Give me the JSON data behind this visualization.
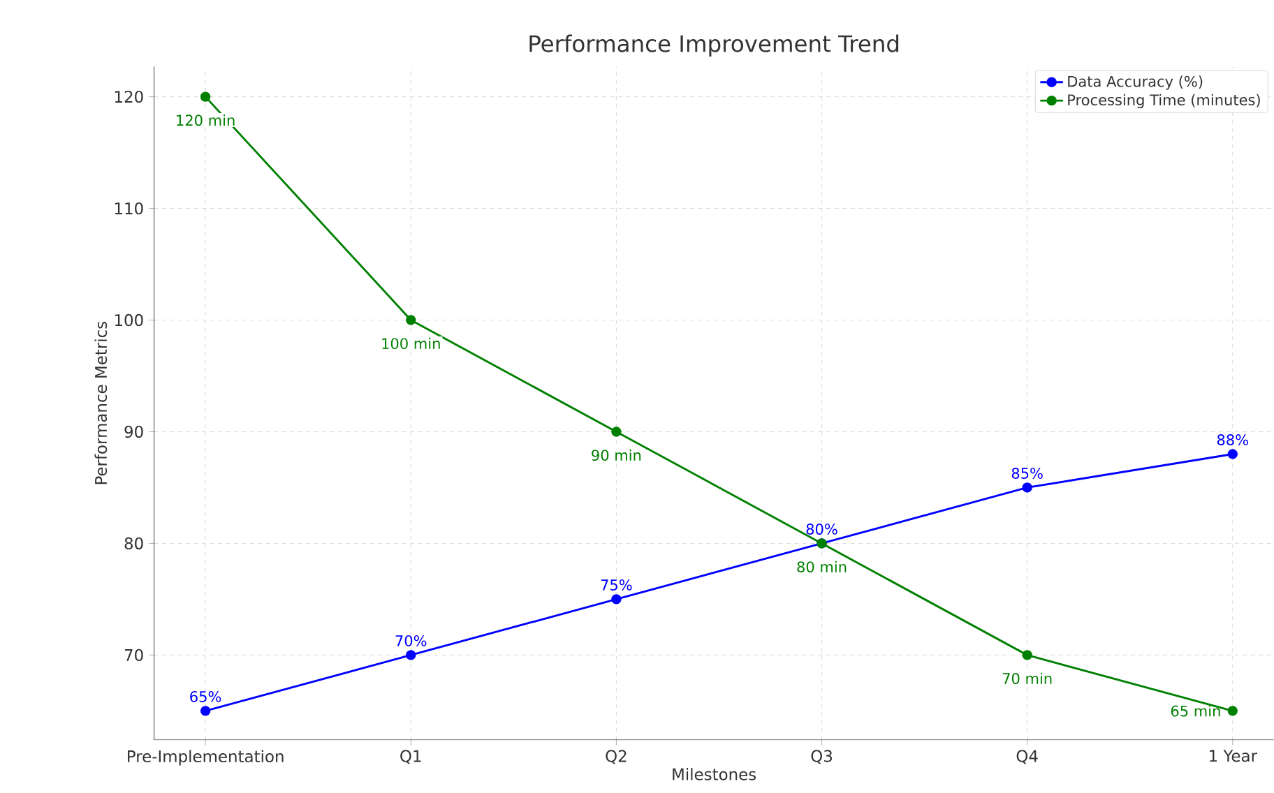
{
  "chart_data": {
    "type": "line",
    "title": "Performance Improvement Trend",
    "xlabel": "Milestones",
    "ylabel": "Performance Metrics",
    "categories": [
      "Pre-Implementation",
      "Q1",
      "Q2",
      "Q3",
      "Q4",
      "1 Year"
    ],
    "series": [
      {
        "name": "Data Accuracy (%)",
        "color": "#0000ff",
        "values": [
          65,
          70,
          75,
          80,
          85,
          88
        ],
        "value_labels": [
          "65%",
          "70%",
          "75%",
          "80%",
          "85%",
          "88%"
        ]
      },
      {
        "name": "Processing Time (minutes)",
        "color": "#008000",
        "values": [
          120,
          100,
          90,
          80,
          70,
          65
        ],
        "value_labels": [
          "120 min",
          "100 min",
          "90 min",
          "80 min",
          "70 min",
          "65 min"
        ]
      }
    ],
    "ylim": [
      62.4,
      122.7
    ],
    "yticks": [
      70,
      80,
      90,
      100,
      110,
      120
    ],
    "grid": true,
    "legend": "top right",
    "marker": "circle",
    "line_style": "solid"
  }
}
